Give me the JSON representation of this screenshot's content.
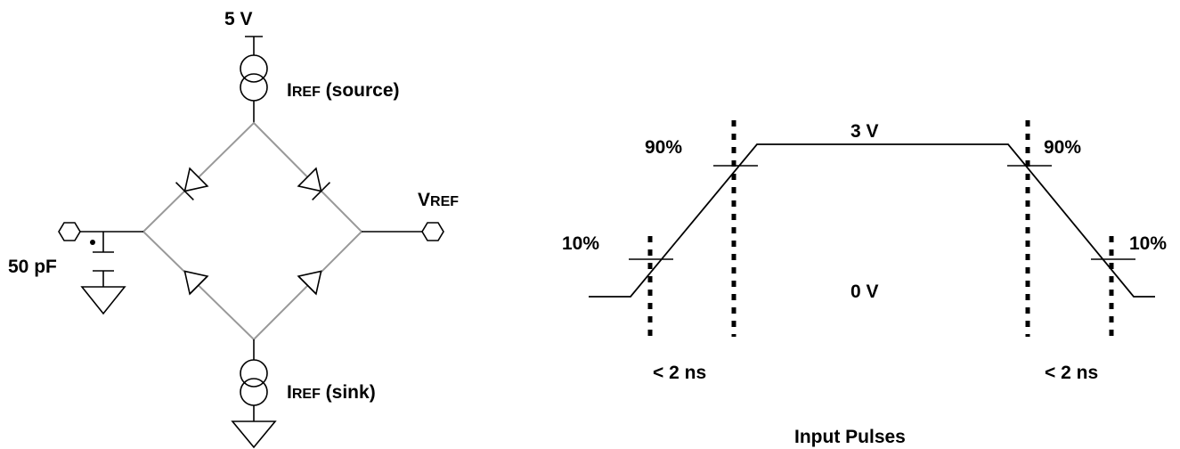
{
  "circuit": {
    "supply_label": "5 V",
    "source_label": {
      "main": "I",
      "sub": "REF",
      "suffix": " (source)"
    },
    "sink_label": {
      "main": "I",
      "sub": "REF",
      "suffix": " (sink)"
    },
    "vref_label": {
      "main": "V",
      "sub": "REF"
    },
    "capacitor_label": "50 pF"
  },
  "waveform": {
    "high_level_label": "3 V",
    "low_level_label": "0 V",
    "rise_90_label": "90%",
    "fall_90_label": "90%",
    "rise_10_label": "10%",
    "fall_10_label": "10%",
    "rise_time_label": "< 2 ns",
    "fall_time_label": "< 2 ns",
    "title": "Input Pulses"
  }
}
